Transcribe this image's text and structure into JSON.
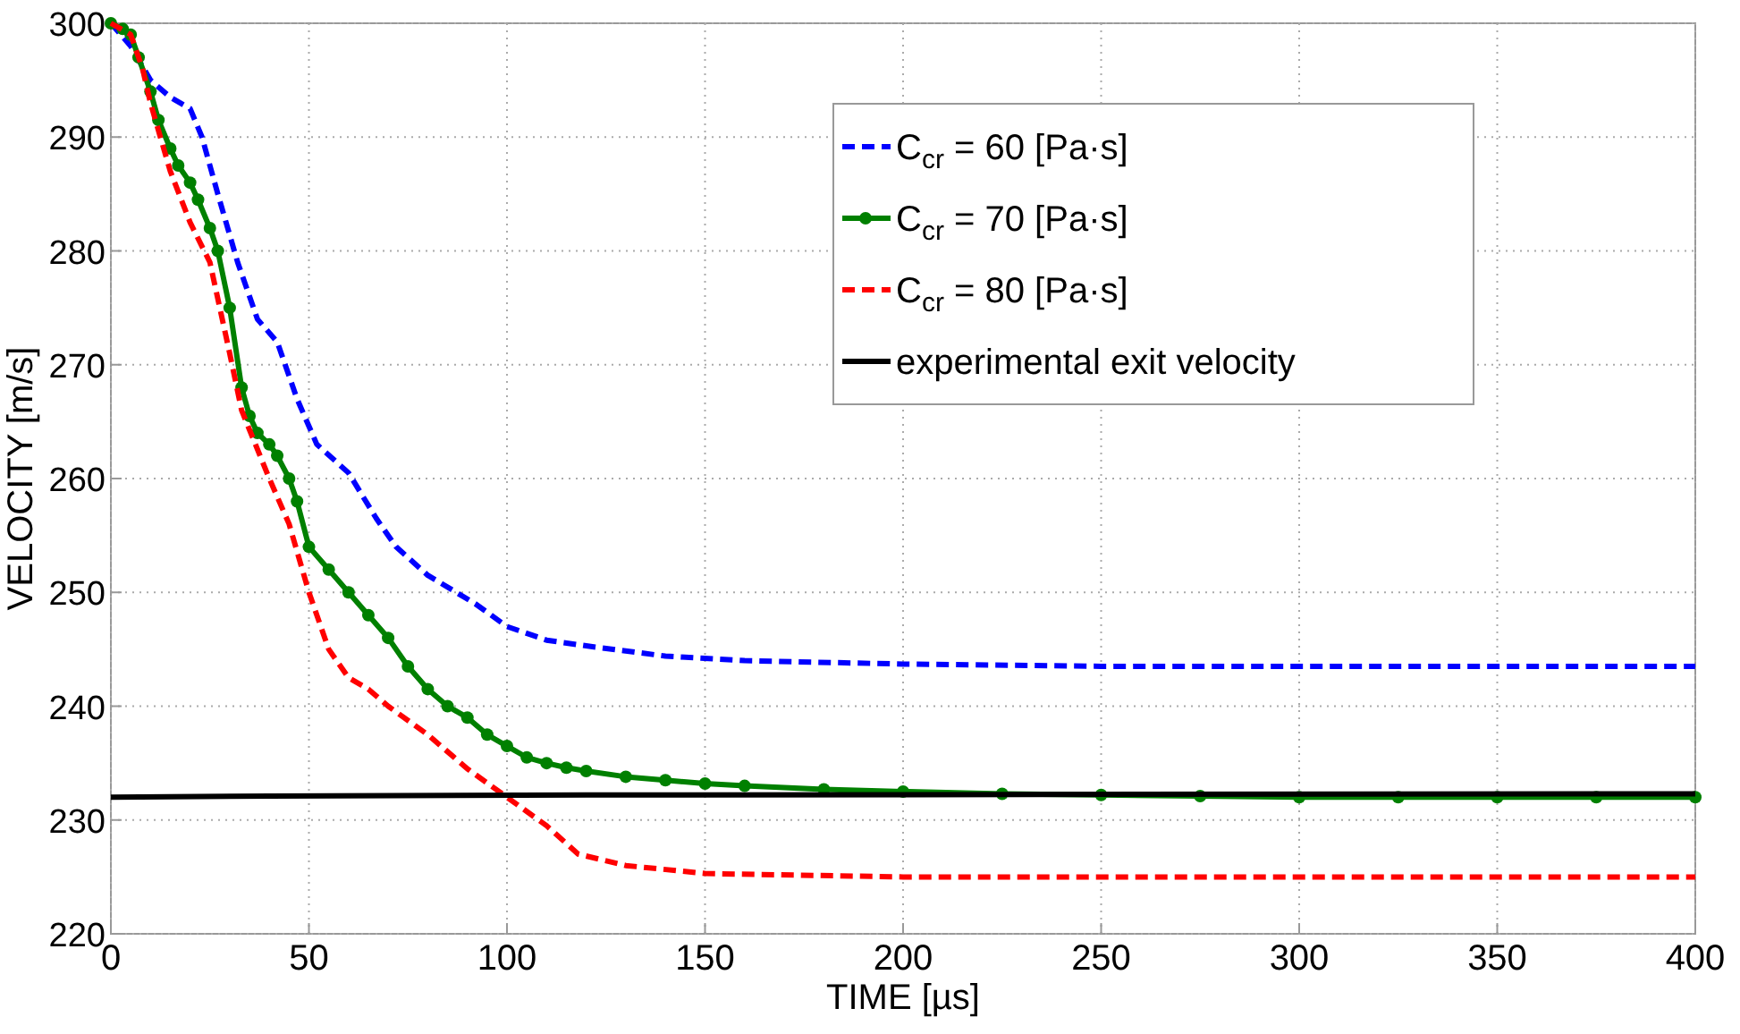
{
  "chart_data": {
    "type": "line",
    "xlabel": "TIME [µs]",
    "ylabel": "VELOCITY [m/s]",
    "xlim": [
      0,
      400
    ],
    "ylim": [
      220,
      300
    ],
    "xticks": [
      0,
      50,
      100,
      150,
      200,
      250,
      300,
      350,
      400
    ],
    "yticks": [
      220,
      230,
      240,
      250,
      260,
      270,
      280,
      290,
      300
    ],
    "grid": true,
    "legend": "top right",
    "series": [
      {
        "name": "C$_{cr}$ = 60 [Pa·s]",
        "color": "#0000ff",
        "line_style": "dashed",
        "marker": "none",
        "x": [
          0,
          5,
          10,
          15,
          20,
          23,
          27,
          32,
          37,
          42,
          47,
          52,
          60,
          67,
          72,
          80,
          92,
          100,
          110,
          120,
          140,
          160,
          200,
          250,
          300,
          400
        ],
        "values": [
          300,
          298,
          295,
          293.5,
          292.5,
          290,
          285,
          279,
          274,
          272,
          267,
          263,
          260.5,
          256.5,
          254,
          251.5,
          249,
          247,
          245.8,
          245.3,
          244.4,
          244,
          243.7,
          243.5,
          243.5,
          243.5
        ]
      },
      {
        "name": "C$_{cr}$ = 70 [Pa·s]",
        "color": "#008000",
        "line_style": "solid",
        "marker": "circle",
        "x": [
          0,
          3,
          5,
          7,
          10,
          12,
          15,
          17,
          20,
          22,
          25,
          27,
          30,
          33,
          35,
          37,
          40,
          42,
          45,
          47,
          50,
          55,
          60,
          65,
          70,
          75,
          80,
          85,
          90,
          95,
          100,
          105,
          110,
          115,
          120,
          130,
          140,
          150,
          160,
          180,
          200,
          225,
          250,
          275,
          300,
          325,
          350,
          375,
          400
        ],
        "values": [
          300,
          299.5,
          299,
          297,
          294,
          291.5,
          289,
          287.5,
          286,
          284.5,
          282,
          280,
          275,
          268,
          265.5,
          264,
          263,
          262,
          260,
          258,
          254,
          252,
          250,
          248,
          246,
          243.5,
          241.5,
          240,
          239,
          237.5,
          236.5,
          235.5,
          235,
          234.6,
          234.3,
          233.8,
          233.5,
          233.2,
          233,
          232.7,
          232.5,
          232.3,
          232.2,
          232.1,
          232,
          232,
          232,
          232,
          232
        ]
      },
      {
        "name": "C$_{cr}$ = 80 [Pa·s]",
        "color": "#ff0000",
        "line_style": "dashed",
        "marker": "none",
        "x": [
          0,
          5,
          8,
          10,
          15,
          20,
          25,
          30,
          33,
          40,
          45,
          50,
          55,
          60,
          65,
          70,
          80,
          90,
          100,
          110,
          118,
          130,
          150,
          200,
          300,
          400
        ],
        "values": [
          300,
          299,
          296,
          293,
          287,
          282.5,
          279,
          271,
          266,
          260,
          256,
          250,
          245,
          242.5,
          241.5,
          240,
          237.5,
          234.5,
          232,
          229.5,
          227,
          226,
          225.3,
          225,
          225,
          225
        ]
      },
      {
        "name": "experimental exit velocity",
        "color": "#000000",
        "line_style": "solid",
        "marker": "none",
        "x": [
          0,
          40,
          120,
          400
        ],
        "values": [
          232,
          232.1,
          232.2,
          232.3
        ]
      }
    ]
  }
}
